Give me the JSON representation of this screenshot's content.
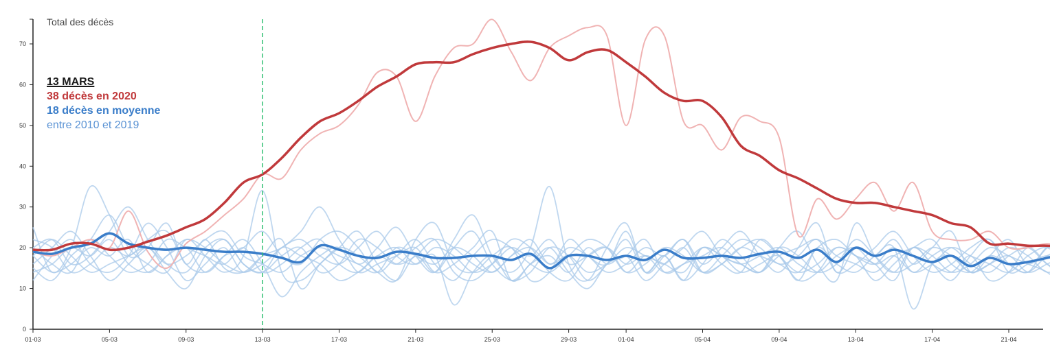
{
  "chart_data": {
    "type": "line",
    "title": "Total des décès",
    "ylim": [
      0,
      78
    ],
    "yticks": [
      0,
      10,
      20,
      30,
      40,
      50,
      60,
      70
    ],
    "xlim": [
      0,
      54
    ],
    "xticks": [
      {
        "day": 0,
        "label": "01-03"
      },
      {
        "day": 4,
        "label": "05-03"
      },
      {
        "day": 8,
        "label": "09-03"
      },
      {
        "day": 12,
        "label": "13-03"
      },
      {
        "day": 16,
        "label": "17-03"
      },
      {
        "day": 20,
        "label": "21-03"
      },
      {
        "day": 24,
        "label": "25-03"
      },
      {
        "day": 28,
        "label": "29-03"
      },
      {
        "day": 31,
        "label": "01-04"
      },
      {
        "day": 35,
        "label": "05-04"
      },
      {
        "day": 39,
        "label": "09-04"
      },
      {
        "day": 43,
        "label": "13-04"
      },
      {
        "day": 47,
        "label": "17-04"
      },
      {
        "day": 51,
        "label": "21-04"
      }
    ],
    "marker": {
      "day": 12,
      "label": "13-03",
      "color": "#2fbf71"
    },
    "annotation": {
      "date": "13 MARS",
      "line_2020": "38 décès en 2020",
      "line_avg": "18 décès en moyenne",
      "line_range": "entre 2010 et 2019"
    },
    "colors": {
      "y2020_smooth": "#c0393b",
      "y2020_raw": "#f0b3b3",
      "average": "#3a7dc9",
      "past_years": "#a9c9ea"
    },
    "series_2020_raw": [
      19,
      18,
      20,
      22,
      20,
      29,
      19,
      15,
      21,
      24,
      28,
      32,
      38,
      37,
      44,
      48,
      50,
      55,
      63,
      62,
      51,
      62,
      69,
      70,
      76,
      68,
      61,
      69,
      72,
      74,
      72,
      50,
      71,
      72,
      51,
      50,
      44,
      52,
      51,
      47,
      23,
      32,
      27,
      32,
      36,
      29,
      36,
      24,
      22,
      22,
      24,
      20,
      20,
      21,
      20
    ],
    "series_2020_smooth": [
      19.5,
      19.5,
      21,
      21,
      19.5,
      20,
      21.5,
      23,
      25,
      27,
      31,
      36,
      38,
      42,
      47,
      51,
      53,
      56,
      59.5,
      62,
      65,
      65.5,
      65.5,
      67.5,
      69,
      70,
      70.5,
      69,
      66,
      68,
      68.5,
      65.5,
      62,
      58,
      56,
      56,
      52,
      45,
      42.5,
      39,
      37,
      34.5,
      32,
      31,
      31,
      30,
      29,
      28,
      26,
      25,
      21,
      21,
      20.5,
      20.5,
      20
    ],
    "series_avg": [
      19,
      18.5,
      20,
      21,
      23.5,
      21,
      20,
      19.5,
      20,
      19.5,
      19,
      19,
      18.5,
      17.5,
      16.5,
      20.5,
      19.5,
      18,
      17.5,
      19,
      18.5,
      17.5,
      17.5,
      18,
      18,
      17,
      18.5,
      15,
      18,
      18,
      17,
      18,
      17,
      19.5,
      17.5,
      17.5,
      18,
      17.5,
      18.5,
      19,
      17.5,
      19.5,
      16.5,
      20,
      18,
      19.5,
      18,
      16.5,
      18,
      15.5,
      17.5,
      16,
      16.5,
      17.5,
      18.5
    ],
    "series_past": [
      [
        25,
        14,
        20,
        35,
        28,
        18,
        20,
        26,
        16,
        22,
        15,
        14,
        18,
        20,
        24,
        30,
        22,
        16,
        20,
        25,
        18,
        14,
        22,
        28,
        18,
        14,
        20,
        35,
        16,
        12,
        20,
        26,
        14,
        18,
        22,
        16,
        20,
        24,
        18,
        14,
        20,
        26,
        14,
        20,
        18,
        22,
        16,
        20,
        24,
        14,
        18,
        22,
        16,
        20,
        25
      ],
      [
        15,
        12,
        18,
        22,
        28,
        20,
        16,
        14,
        22,
        18,
        14,
        18,
        34,
        14,
        12,
        16,
        20,
        18,
        14,
        12,
        22,
        26,
        16,
        14,
        18,
        20,
        12,
        14,
        22,
        18,
        16,
        24,
        14,
        18,
        12,
        16,
        22,
        18,
        14,
        20,
        24,
        16,
        12,
        26,
        18,
        14,
        20,
        16,
        12,
        18,
        22,
        14,
        16,
        18,
        16
      ],
      [
        20,
        22,
        16,
        18,
        24,
        30,
        22,
        16,
        14,
        20,
        22,
        16,
        14,
        18,
        20,
        14,
        16,
        22,
        20,
        16,
        18,
        22,
        20,
        16,
        14,
        18,
        22,
        16,
        20,
        18,
        14,
        16,
        20,
        18,
        22,
        14,
        16,
        20,
        18,
        16,
        14,
        20,
        22,
        18,
        16,
        20,
        14,
        18,
        20,
        16,
        14,
        18,
        20,
        16,
        14
      ],
      [
        12,
        18,
        22,
        16,
        14,
        18,
        26,
        20,
        12,
        16,
        20,
        14,
        18,
        22,
        10,
        16,
        20,
        24,
        16,
        12,
        18,
        14,
        20,
        24,
        16,
        12,
        14,
        20,
        18,
        12,
        16,
        22,
        14,
        18,
        12,
        20,
        16,
        14,
        22,
        18,
        12,
        14,
        20,
        18,
        16,
        12,
        20,
        16,
        14,
        18,
        12,
        14,
        20,
        16,
        12
      ],
      [
        18,
        14,
        16,
        20,
        18,
        22,
        14,
        18,
        20,
        14,
        18,
        22,
        16,
        8,
        14,
        18,
        20,
        14,
        16,
        18,
        20,
        14,
        16,
        20,
        24,
        12,
        16,
        18,
        14,
        20,
        16,
        18,
        12,
        16,
        20,
        24,
        18,
        16,
        14,
        20,
        18,
        14,
        16,
        22,
        18,
        14,
        16,
        20,
        18,
        14,
        16,
        18,
        14,
        16,
        18
      ],
      [
        22,
        20,
        14,
        16,
        20,
        18,
        22,
        24,
        16,
        14,
        18,
        20,
        24,
        18,
        16,
        22,
        24,
        20,
        14,
        18,
        22,
        16,
        12,
        18,
        22,
        20,
        16,
        14,
        18,
        22,
        20,
        14,
        18,
        16,
        20,
        14,
        18,
        22,
        20,
        16,
        18,
        22,
        14,
        16,
        20,
        24,
        18,
        14,
        16,
        20,
        22,
        16,
        14,
        18,
        20
      ],
      [
        16,
        20,
        24,
        18,
        12,
        16,
        20,
        14,
        10,
        18,
        22,
        16,
        14,
        20,
        18,
        16,
        12,
        14,
        18,
        20,
        16,
        18,
        6,
        14,
        18,
        12,
        16,
        20,
        14,
        10,
        16,
        18,
        22,
        14,
        16,
        20,
        18,
        14,
        16,
        18,
        12,
        20,
        16,
        14,
        18,
        20,
        5,
        16,
        18,
        14,
        16,
        20,
        18,
        14,
        16
      ],
      [
        14,
        16,
        20,
        18,
        22,
        16,
        14,
        18,
        22,
        20,
        16,
        14,
        16,
        20,
        22,
        18,
        16,
        20,
        24,
        18,
        16,
        20,
        18,
        14,
        16,
        20,
        18,
        22,
        16,
        18,
        20,
        16,
        18,
        14,
        16,
        18,
        20,
        16,
        14,
        18,
        20,
        22,
        18,
        16,
        14,
        18,
        20,
        22,
        16,
        14,
        18,
        16,
        14,
        20,
        18
      ],
      [
        20,
        16,
        14,
        22,
        18,
        14,
        16,
        22,
        20,
        18,
        16,
        20,
        14,
        16,
        20,
        22,
        16,
        14,
        18,
        16,
        20,
        22,
        14,
        12,
        16,
        22,
        20,
        14,
        12,
        18,
        20,
        14,
        16,
        20,
        18,
        14,
        16,
        20,
        22,
        18,
        14,
        16,
        20,
        18,
        12,
        16,
        20,
        18,
        14,
        16,
        20,
        18,
        16,
        14,
        10
      ],
      [
        18,
        22,
        18,
        14,
        16,
        18,
        20,
        16,
        18,
        22,
        24,
        18,
        16,
        14,
        18,
        20,
        18,
        16,
        14,
        20,
        18,
        16,
        20,
        18,
        14,
        18,
        20,
        16,
        18,
        14,
        16,
        20,
        18,
        16,
        14,
        20,
        18,
        16,
        18,
        20,
        16,
        14,
        18,
        20,
        16,
        18,
        14,
        16,
        20,
        18,
        16,
        14,
        18,
        20,
        16
      ]
    ]
  }
}
